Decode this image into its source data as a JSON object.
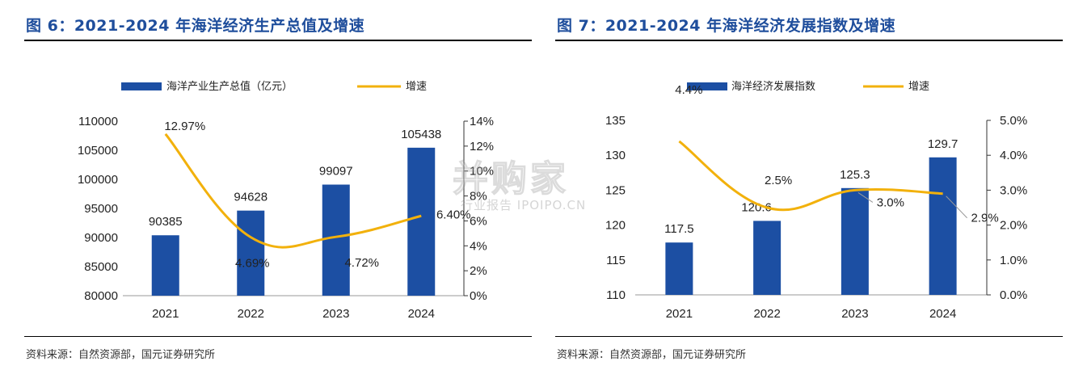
{
  "colors": {
    "title": "#1f4e9c",
    "bar": "#1c4fa3",
    "line": "#f2b10c"
  },
  "figures": [
    {
      "title": "图 6：2021-2024 年海洋经济生产总值及增速",
      "source": "资料来源：自然资源部，国元证券研究所"
    },
    {
      "title": "图 7：2021-2024 年海洋经济发展指数及增速",
      "source": "资料来源：自然资源部，国元证券研究所"
    }
  ],
  "watermark": {
    "main": "并购家",
    "sub": "行业报告 IPOIPO.CN"
  },
  "chart_data": [
    {
      "type": "bar",
      "categories": [
        "2021",
        "2022",
        "2023",
        "2024"
      ],
      "series": [
        {
          "name": "海洋产业生产总值（亿元）",
          "type": "bar",
          "axis": "left",
          "values": [
            90385,
            94628,
            99097,
            105438
          ],
          "labels": [
            "90385",
            "94628",
            "99097",
            "105438"
          ]
        },
        {
          "name": "增速",
          "type": "line",
          "axis": "right",
          "values": [
            12.97,
            4.69,
            4.72,
            6.4
          ],
          "labels": [
            "12.97%",
            "4.69%",
            "4.72%",
            "6.40%"
          ]
        }
      ],
      "ylim": [
        80000,
        110000
      ],
      "yticks": [
        "80000",
        "85000",
        "90000",
        "95000",
        "100000",
        "105000",
        "110000"
      ],
      "y2lim": [
        0,
        14
      ],
      "y2ticks": [
        "0%",
        "2%",
        "4%",
        "6%",
        "8%",
        "10%",
        "12%",
        "14%"
      ],
      "legend": "top-center",
      "grid": false
    },
    {
      "type": "bar",
      "categories": [
        "2021",
        "2022",
        "2023",
        "2024"
      ],
      "series": [
        {
          "name": "海洋经济发展指数",
          "type": "bar",
          "axis": "left",
          "values": [
            117.5,
            120.6,
            125.3,
            129.7
          ],
          "labels": [
            "117.5",
            "120.6",
            "125.3",
            "129.7"
          ]
        },
        {
          "name": "增速",
          "type": "line",
          "axis": "right",
          "values": [
            4.4,
            2.5,
            3.0,
            2.9
          ],
          "labels": [
            "4.4%",
            "2.5%",
            "3.0%",
            "2.9%"
          ]
        }
      ],
      "ylim": [
        110,
        135
      ],
      "yticks": [
        "110",
        "115",
        "120",
        "125",
        "130",
        "135"
      ],
      "y2lim": [
        0,
        5
      ],
      "y2ticks": [
        "0.0%",
        "1.0%",
        "2.0%",
        "3.0%",
        "4.0%",
        "5.0%"
      ],
      "legend": "top-center",
      "grid": false
    }
  ]
}
